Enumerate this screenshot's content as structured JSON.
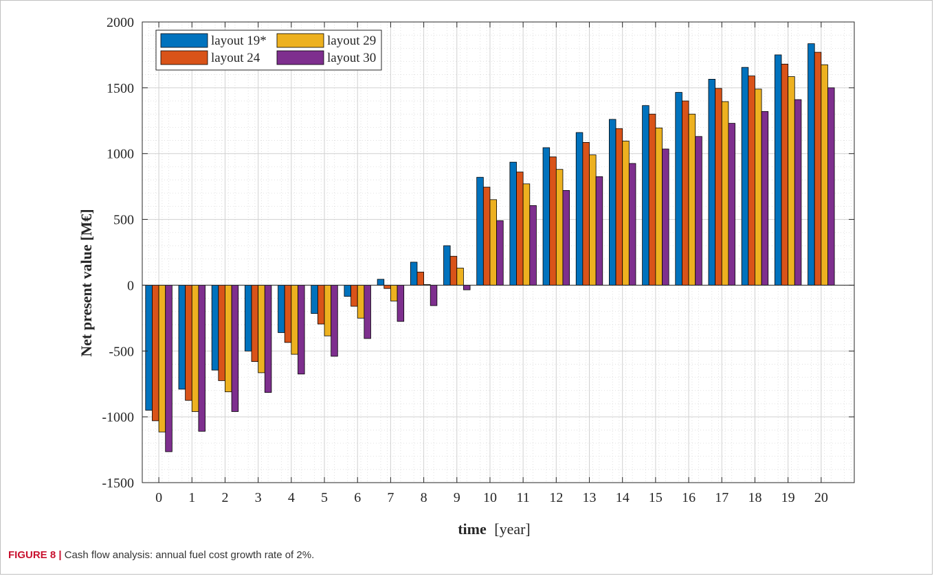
{
  "figure": {
    "label": "FIGURE 8 |",
    "caption": "Cash flow analysis: annual fuel cost growth rate of 2%."
  },
  "colors": {
    "series": [
      "#0072BD",
      "#D95319",
      "#EDB120",
      "#7E2F8E"
    ]
  },
  "chart_data": {
    "type": "bar",
    "xlabel_bold": "time",
    "xlabel_unit": "[year]",
    "ylabel": "Net present value [M€]",
    "ylim": [
      -1500,
      2000
    ],
    "yticks": [
      -1500,
      -1000,
      -500,
      0,
      500,
      1000,
      1500,
      2000
    ],
    "ytick_labels": [
      "-1500",
      "-1000",
      "-500",
      "0",
      "500",
      "1000",
      "1500",
      "2000"
    ],
    "categories": [
      "0",
      "1",
      "2",
      "3",
      "4",
      "5",
      "6",
      "7",
      "8",
      "9",
      "10",
      "11",
      "12",
      "13",
      "14",
      "15",
      "16",
      "17",
      "18",
      "19",
      "20"
    ],
    "grid": true,
    "minor_grid": true,
    "legend_position": "top-left",
    "series": [
      {
        "name": "layout 19*",
        "values": [
          -950,
          -790,
          -645,
          -500,
          -360,
          -215,
          -85,
          45,
          175,
          300,
          820,
          935,
          1045,
          1160,
          1260,
          1365,
          1465,
          1565,
          1655,
          1750,
          1835
        ]
      },
      {
        "name": "layout 24",
        "values": [
          -1030,
          -875,
          -725,
          -580,
          -435,
          -295,
          -160,
          -25,
          100,
          220,
          745,
          860,
          975,
          1085,
          1190,
          1300,
          1400,
          1495,
          1590,
          1680,
          1770
        ]
      },
      {
        "name": "layout 29",
        "values": [
          -1115,
          -960,
          -810,
          -665,
          -525,
          -385,
          -250,
          -120,
          5,
          130,
          650,
          770,
          880,
          990,
          1095,
          1195,
          1300,
          1395,
          1490,
          1585,
          1675
        ]
      },
      {
        "name": "layout 30",
        "values": [
          -1265,
          -1110,
          -960,
          -815,
          -675,
          -540,
          -405,
          -275,
          -155,
          -35,
          490,
          605,
          720,
          825,
          925,
          1035,
          1130,
          1230,
          1320,
          1410,
          1500
        ]
      }
    ]
  }
}
